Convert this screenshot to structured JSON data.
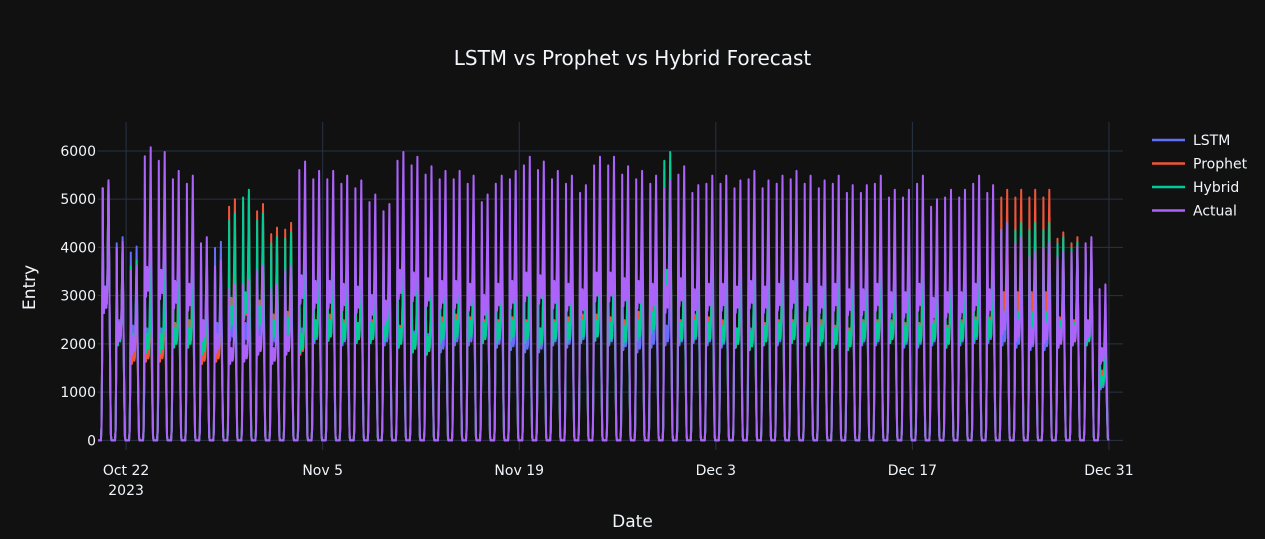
{
  "chart_data": {
    "type": "line",
    "title": "LSTM vs Prophet vs Hybrid Forecast",
    "xlabel": "Date",
    "ylabel": "Entry",
    "xlim": [
      "2023-10-20",
      "2024-01-01"
    ],
    "ylim": [
      -200,
      6600
    ],
    "x_ticks": [
      {
        "date": "2023-10-22",
        "label": "Oct 22",
        "sub": "2023"
      },
      {
        "date": "2023-11-05",
        "label": "Nov 5",
        "sub": ""
      },
      {
        "date": "2023-11-19",
        "label": "Nov 19",
        "sub": ""
      },
      {
        "date": "2023-12-03",
        "label": "Dec 3",
        "sub": ""
      },
      {
        "date": "2023-12-17",
        "label": "Dec 17",
        "sub": ""
      },
      {
        "date": "2023-12-31",
        "label": "Dec 31",
        "sub": ""
      }
    ],
    "y_ticks": [
      0,
      1000,
      2000,
      3000,
      4000,
      5000,
      6000
    ],
    "grid": true,
    "legend_position": "top-right",
    "series": [
      {
        "name": "LSTM",
        "color": "#636efa",
        "daily_peaks": [
          5500,
          4300,
          4100,
          4000,
          4000,
          4100,
          4200,
          4100,
          4200,
          4300,
          4200,
          4200,
          4100,
          4000,
          4000,
          4200,
          4300,
          4100,
          4200,
          4200,
          4100,
          4000,
          3900,
          3800,
          3800,
          4100,
          4100,
          4200,
          4000,
          3900,
          3800,
          3800,
          4100,
          4000,
          4200,
          4300,
          4100,
          3900,
          3800,
          4000,
          4100,
          4100,
          4200,
          4100,
          4000,
          4000,
          4000,
          4100,
          4100,
          4200,
          4100,
          4100,
          4000,
          3900,
          4100,
          4100,
          4200,
          4000,
          4000,
          4100,
          4000,
          4100,
          4200,
          4200,
          4100,
          4000,
          3900,
          3900,
          4100,
          4100,
          4100,
          2200
        ]
      },
      {
        "name": "Prophet",
        "color": "#ef553b",
        "daily_peaks": [
          5500,
          4200,
          3300,
          3400,
          3400,
          4200,
          4300,
          3300,
          3400,
          5100,
          5200,
          5000,
          4500,
          4600,
          3700,
          4300,
          4500,
          4300,
          4200,
          4300,
          4600,
          4100,
          3800,
          3700,
          4400,
          4500,
          4400,
          4300,
          4300,
          4400,
          4300,
          4000,
          4300,
          4400,
          4500,
          4500,
          4400,
          4300,
          4600,
          5000,
          5900,
          4300,
          4500,
          4400,
          4300,
          4000,
          3900,
          4200,
          4300,
          4300,
          4200,
          4300,
          4100,
          4000,
          4300,
          4300,
          4300,
          4200,
          4200,
          4300,
          4100,
          4300,
          4400,
          4400,
          5300,
          5300,
          5300,
          5300,
          4400,
          4300,
          4200,
          2500
        ]
      },
      {
        "name": "Hybrid",
        "color": "#00cc96",
        "daily_peaks": [
          5500,
          4100,
          3800,
          3800,
          3800,
          4000,
          4000,
          3700,
          3800,
          4800,
          5300,
          4800,
          4300,
          4400,
          3800,
          4300,
          4300,
          4200,
          4200,
          4200,
          4300,
          4000,
          3800,
          3700,
          4200,
          4300,
          4300,
          4200,
          4200,
          4300,
          4200,
          4000,
          4200,
          4200,
          4300,
          4300,
          4200,
          4100,
          4300,
          4600,
          6100,
          4200,
          4300,
          4200,
          4100,
          4000,
          3900,
          4100,
          4200,
          4200,
          4100,
          4100,
          4000,
          3900,
          4200,
          4200,
          4200,
          4100,
          4100,
          4200,
          4000,
          4200,
          4300,
          4300,
          4600,
          4600,
          4600,
          4600,
          4300,
          4200,
          4100,
          2300
        ]
      },
      {
        "name": "Actual",
        "color": "#ab63fa",
        "daily_peaks": [
          5500,
          4200,
          3700,
          6200,
          6100,
          5700,
          5600,
          4300,
          3800,
          3300,
          3400,
          3700,
          3300,
          3700,
          5900,
          5700,
          5700,
          5600,
          5500,
          5200,
          5000,
          6100,
          6000,
          5800,
          5700,
          5700,
          5600,
          5200,
          5600,
          5700,
          6000,
          5900,
          5700,
          5600,
          5400,
          6000,
          6000,
          5800,
          5700,
          5600,
          5500,
          5800,
          5400,
          5600,
          5600,
          5500,
          5700,
          5500,
          5600,
          5700,
          5600,
          5500,
          5600,
          5400,
          5400,
          5600,
          5300,
          5300,
          5600,
          5100,
          5300,
          5300,
          5600,
          5400,
          4600,
          4300,
          4000,
          4200,
          4000,
          4100,
          4300,
          3300
        ]
      }
    ]
  }
}
